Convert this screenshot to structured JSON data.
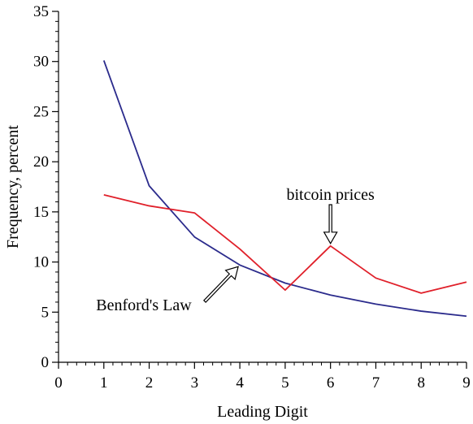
{
  "chart_data": {
    "type": "line",
    "xlabel": "Leading Digit",
    "ylabel": "Frequency, percent",
    "xlim": [
      0,
      9
    ],
    "ylim": [
      0,
      35
    ],
    "xticks": [
      "0",
      "1",
      "2",
      "3",
      "4",
      "5",
      "6",
      "7",
      "8",
      "9"
    ],
    "yticks": [
      "0",
      "5",
      "10",
      "15",
      "20",
      "25",
      "30",
      "35"
    ],
    "grid": false,
    "x": [
      1,
      2,
      3,
      4,
      5,
      6,
      7,
      8,
      9
    ],
    "series": [
      {
        "name": "Benford's Law",
        "color": "#2b2b8c",
        "values": [
          30.1,
          17.6,
          12.5,
          9.7,
          7.9,
          6.7,
          5.8,
          5.1,
          4.6
        ]
      },
      {
        "name": "bitcoin prices",
        "color": "#e0202a",
        "values": [
          16.7,
          15.6,
          14.9,
          11.3,
          7.2,
          11.6,
          8.4,
          6.9,
          8.0
        ]
      }
    ],
    "annotations": [
      {
        "text": "bitcoin prices",
        "series": 1,
        "x": 6
      },
      {
        "text": "Benford's Law",
        "series": 0,
        "x": 4
      }
    ]
  }
}
